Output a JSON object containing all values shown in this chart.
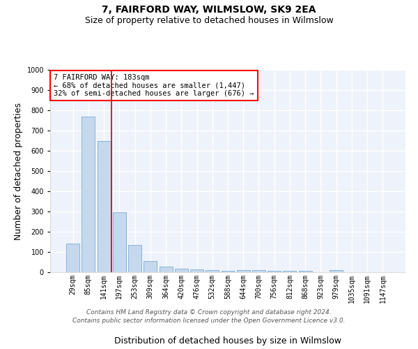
{
  "title": "7, FAIRFORD WAY, WILMSLOW, SK9 2EA",
  "subtitle": "Size of property relative to detached houses in Wilmslow",
  "xlabel": "Distribution of detached houses by size in Wilmslow",
  "ylabel": "Number of detached properties",
  "bar_color": "#c5d8ee",
  "bar_edge_color": "#7aadd4",
  "categories": [
    "29sqm",
    "85sqm",
    "141sqm",
    "197sqm",
    "253sqm",
    "309sqm",
    "364sqm",
    "420sqm",
    "476sqm",
    "532sqm",
    "588sqm",
    "644sqm",
    "700sqm",
    "756sqm",
    "812sqm",
    "868sqm",
    "923sqm",
    "979sqm",
    "1035sqm",
    "1091sqm",
    "1147sqm"
  ],
  "values": [
    140,
    770,
    650,
    295,
    135,
    55,
    28,
    18,
    15,
    10,
    8,
    10,
    10,
    8,
    8,
    8,
    0,
    10,
    0,
    0,
    0
  ],
  "red_line_x": 2.5,
  "ylim": [
    0,
    1000
  ],
  "yticks": [
    0,
    100,
    200,
    300,
    400,
    500,
    600,
    700,
    800,
    900,
    1000
  ],
  "annotation_text": "7 FAIRFORD WAY: 183sqm\n← 68% of detached houses are smaller (1,447)\n32% of semi-detached houses are larger (676) →",
  "annotation_box_color": "white",
  "annotation_box_edge_color": "red",
  "red_line_color": "#cc0000",
  "footer_line1": "Contains HM Land Registry data © Crown copyright and database right 2024.",
  "footer_line2": "Contains public sector information licensed under the Open Government Licence v3.0.",
  "background_color": "#eef2fa",
  "grid_color": "white",
  "title_fontsize": 10,
  "subtitle_fontsize": 9,
  "tick_fontsize": 7,
  "label_fontsize": 9,
  "annotation_fontsize": 7.5,
  "footer_fontsize": 6.5
}
